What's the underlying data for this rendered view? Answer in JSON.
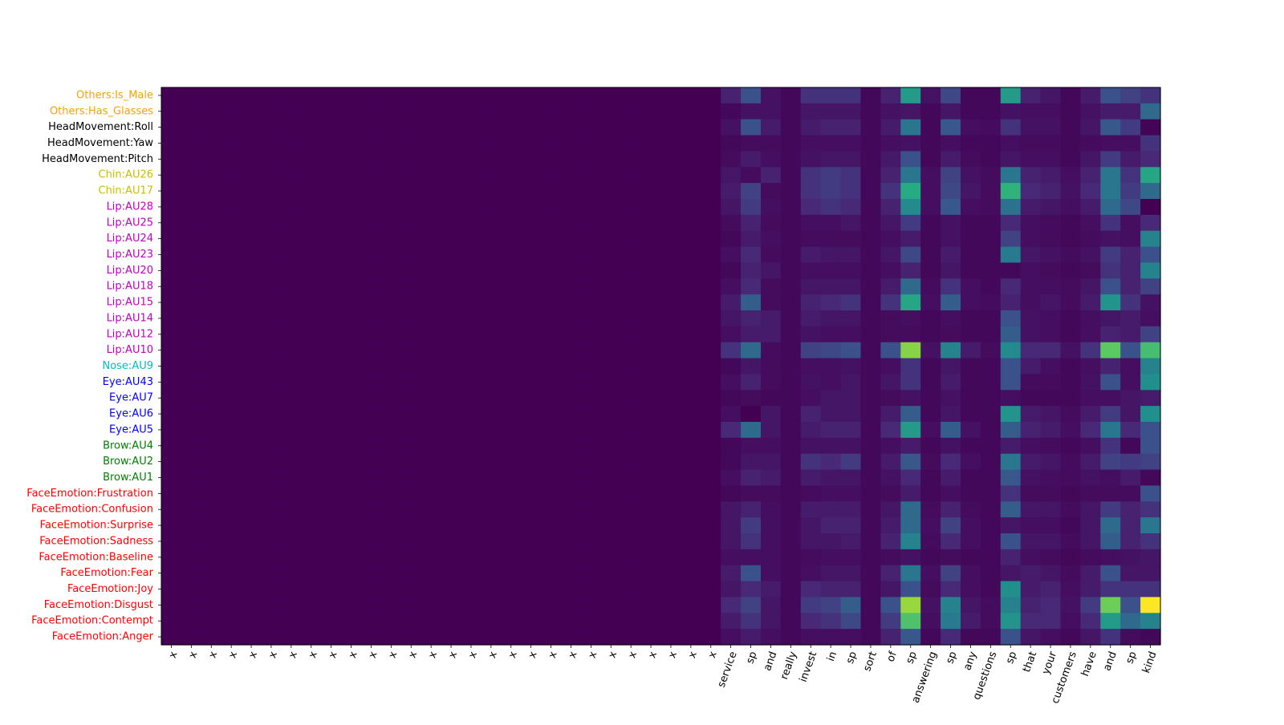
{
  "chart_data": {
    "type": "heatmap",
    "colormap": "viridis",
    "color_range": [
      0,
      1
    ],
    "x_tick_labels": [
      "x",
      "x",
      "x",
      "x",
      "x",
      "x",
      "x",
      "x",
      "x",
      "x",
      "x",
      "x",
      "x",
      "x",
      "x",
      "x",
      "x",
      "x",
      "x",
      "x",
      "x",
      "x",
      "x",
      "x",
      "x",
      "x",
      "x",
      "x",
      "service",
      "sp",
      "and",
      "really",
      "invest",
      "in",
      "sp",
      "sort",
      "of",
      "sp",
      "answering",
      "sp",
      "any",
      "questions",
      "sp",
      "that",
      "your",
      "customers",
      "have",
      "and",
      "sp",
      "kind"
    ],
    "y_tick_labels": [
      {
        "text": "Others:Is_Male",
        "color": "#f5a300"
      },
      {
        "text": "Others:Has_Glasses",
        "color": "#f5a300"
      },
      {
        "text": "HeadMovement:Roll",
        "color": "#000000"
      },
      {
        "text": "HeadMovement:Yaw",
        "color": "#000000"
      },
      {
        "text": "HeadMovement:Pitch",
        "color": "#000000"
      },
      {
        "text": "Chin:AU26",
        "color": "#c8be00"
      },
      {
        "text": "Chin:AU17",
        "color": "#c8be00"
      },
      {
        "text": "Lip:AU28",
        "color": "#c000c0"
      },
      {
        "text": "Lip:AU25",
        "color": "#c000c0"
      },
      {
        "text": "Lip:AU24",
        "color": "#c000c0"
      },
      {
        "text": "Lip:AU23",
        "color": "#c000c0"
      },
      {
        "text": "Lip:AU20",
        "color": "#c000c0"
      },
      {
        "text": "Lip:AU18",
        "color": "#c000c0"
      },
      {
        "text": "Lip:AU15",
        "color": "#c000c0"
      },
      {
        "text": "Lip:AU14",
        "color": "#c000c0"
      },
      {
        "text": "Lip:AU12",
        "color": "#c000c0"
      },
      {
        "text": "Lip:AU10",
        "color": "#c000c0"
      },
      {
        "text": "Nose:AU9",
        "color": "#00bfbf"
      },
      {
        "text": "Eye:AU43",
        "color": "#0000ff"
      },
      {
        "text": "Eye:AU7",
        "color": "#0000ff"
      },
      {
        "text": "Eye:AU6",
        "color": "#0000ff"
      },
      {
        "text": "Eye:AU5",
        "color": "#0000ff"
      },
      {
        "text": "Brow:AU4",
        "color": "#008000"
      },
      {
        "text": "Brow:AU2",
        "color": "#008000"
      },
      {
        "text": "Brow:AU1",
        "color": "#008000"
      },
      {
        "text": "FaceEmotion:Frustration",
        "color": "#ff0000"
      },
      {
        "text": "FaceEmotion:Confusion",
        "color": "#ff0000"
      },
      {
        "text": "FaceEmotion:Surprise",
        "color": "#ff0000"
      },
      {
        "text": "FaceEmotion:Sadness",
        "color": "#ff0000"
      },
      {
        "text": "FaceEmotion:Baseline",
        "color": "#ff0000"
      },
      {
        "text": "FaceEmotion:Fear",
        "color": "#ff0000"
      },
      {
        "text": "FaceEmotion:Joy",
        "color": "#ff0000"
      },
      {
        "text": "FaceEmotion:Disgust",
        "color": "#ff0000"
      },
      {
        "text": "FaceEmotion:Contempt",
        "color": "#ff0000"
      },
      {
        "text": "FaceEmotion:Anger",
        "color": "#ff0000"
      }
    ],
    "zero_columns": 28,
    "values": [
      [
        0.1,
        0.25,
        0.05,
        0.02,
        0.15,
        0.15,
        0.15,
        0.02,
        0.1,
        0.55,
        0.05,
        0.22,
        0.02,
        0.02,
        0.55,
        0.1,
        0.06,
        0.02,
        0.08,
        0.25,
        0.2,
        0.15
      ],
      [
        0.02,
        0.05,
        0.05,
        0.02,
        0.06,
        0.06,
        0.06,
        0.02,
        0.05,
        0.06,
        0.02,
        0.06,
        0.02,
        0.02,
        0.05,
        0.04,
        0.04,
        0.02,
        0.05,
        0.08,
        0.08,
        0.35
      ],
      [
        0.05,
        0.25,
        0.08,
        0.02,
        0.08,
        0.1,
        0.1,
        0.02,
        0.08,
        0.4,
        0.02,
        0.28,
        0.04,
        0.03,
        0.15,
        0.05,
        0.05,
        0.02,
        0.06,
        0.28,
        0.18,
        0.01
      ],
      [
        0.02,
        0.03,
        0.03,
        0.02,
        0.04,
        0.04,
        0.04,
        0.02,
        0.04,
        0.05,
        0.02,
        0.04,
        0.02,
        0.02,
        0.04,
        0.03,
        0.03,
        0.02,
        0.03,
        0.04,
        0.04,
        0.15
      ],
      [
        0.03,
        0.08,
        0.04,
        0.02,
        0.05,
        0.06,
        0.06,
        0.02,
        0.07,
        0.25,
        0.02,
        0.08,
        0.03,
        0.02,
        0.06,
        0.04,
        0.04,
        0.02,
        0.06,
        0.18,
        0.08,
        0.12
      ],
      [
        0.06,
        0.03,
        0.1,
        0.02,
        0.15,
        0.18,
        0.15,
        0.02,
        0.1,
        0.4,
        0.04,
        0.2,
        0.05,
        0.03,
        0.4,
        0.1,
        0.08,
        0.04,
        0.1,
        0.4,
        0.15,
        0.6
      ],
      [
        0.08,
        0.2,
        0.03,
        0.02,
        0.15,
        0.18,
        0.15,
        0.02,
        0.15,
        0.62,
        0.04,
        0.22,
        0.06,
        0.03,
        0.65,
        0.12,
        0.1,
        0.05,
        0.12,
        0.4,
        0.18,
        0.35
      ],
      [
        0.06,
        0.18,
        0.04,
        0.02,
        0.12,
        0.15,
        0.12,
        0.02,
        0.1,
        0.48,
        0.04,
        0.28,
        0.04,
        0.03,
        0.38,
        0.08,
        0.06,
        0.04,
        0.08,
        0.35,
        0.22,
        0.0
      ],
      [
        0.03,
        0.1,
        0.03,
        0.02,
        0.04,
        0.04,
        0.06,
        0.02,
        0.06,
        0.18,
        0.02,
        0.05,
        0.02,
        0.02,
        0.12,
        0.04,
        0.03,
        0.02,
        0.04,
        0.15,
        0.04,
        0.12
      ],
      [
        0.02,
        0.08,
        0.04,
        0.02,
        0.03,
        0.03,
        0.03,
        0.02,
        0.04,
        0.08,
        0.02,
        0.05,
        0.02,
        0.02,
        0.2,
        0.04,
        0.03,
        0.02,
        0.03,
        0.05,
        0.04,
        0.45
      ],
      [
        0.04,
        0.12,
        0.03,
        0.02,
        0.08,
        0.06,
        0.06,
        0.02,
        0.06,
        0.22,
        0.02,
        0.08,
        0.02,
        0.02,
        0.42,
        0.06,
        0.05,
        0.03,
        0.05,
        0.18,
        0.1,
        0.25
      ],
      [
        0.02,
        0.1,
        0.06,
        0.02,
        0.04,
        0.04,
        0.04,
        0.02,
        0.04,
        0.1,
        0.02,
        0.06,
        0.02,
        0.02,
        0.02,
        0.04,
        0.03,
        0.02,
        0.03,
        0.15,
        0.1,
        0.45
      ],
      [
        0.04,
        0.12,
        0.03,
        0.02,
        0.06,
        0.06,
        0.06,
        0.02,
        0.08,
        0.35,
        0.03,
        0.15,
        0.04,
        0.02,
        0.12,
        0.04,
        0.04,
        0.03,
        0.06,
        0.25,
        0.1,
        0.2
      ],
      [
        0.08,
        0.3,
        0.03,
        0.02,
        0.1,
        0.12,
        0.15,
        0.02,
        0.15,
        0.6,
        0.04,
        0.3,
        0.04,
        0.03,
        0.1,
        0.04,
        0.06,
        0.03,
        0.08,
        0.52,
        0.15,
        0.05
      ],
      [
        0.06,
        0.1,
        0.08,
        0.02,
        0.08,
        0.06,
        0.06,
        0.02,
        0.03,
        0.04,
        0.02,
        0.04,
        0.02,
        0.02,
        0.25,
        0.05,
        0.04,
        0.02,
        0.04,
        0.06,
        0.08,
        0.04
      ],
      [
        0.04,
        0.08,
        0.08,
        0.02,
        0.05,
        0.04,
        0.04,
        0.02,
        0.03,
        0.03,
        0.02,
        0.03,
        0.02,
        0.02,
        0.3,
        0.05,
        0.04,
        0.02,
        0.04,
        0.1,
        0.08,
        0.2
      ],
      [
        0.15,
        0.35,
        0.03,
        0.02,
        0.2,
        0.22,
        0.25,
        0.02,
        0.25,
        0.82,
        0.05,
        0.45,
        0.08,
        0.03,
        0.48,
        0.12,
        0.12,
        0.05,
        0.15,
        0.75,
        0.25,
        0.7
      ],
      [
        0.02,
        0.06,
        0.03,
        0.02,
        0.04,
        0.04,
        0.05,
        0.02,
        0.04,
        0.15,
        0.02,
        0.06,
        0.02,
        0.02,
        0.25,
        0.08,
        0.04,
        0.02,
        0.04,
        0.1,
        0.04,
        0.45
      ],
      [
        0.04,
        0.1,
        0.03,
        0.02,
        0.05,
        0.04,
        0.06,
        0.02,
        0.06,
        0.15,
        0.02,
        0.08,
        0.02,
        0.02,
        0.25,
        0.03,
        0.03,
        0.02,
        0.05,
        0.25,
        0.04,
        0.5
      ],
      [
        0.02,
        0.03,
        0.02,
        0.02,
        0.04,
        0.06,
        0.06,
        0.02,
        0.03,
        0.05,
        0.02,
        0.05,
        0.02,
        0.02,
        0.04,
        0.02,
        0.02,
        0.02,
        0.04,
        0.04,
        0.06,
        0.08
      ],
      [
        0.04,
        0.0,
        0.06,
        0.02,
        0.1,
        0.06,
        0.06,
        0.02,
        0.08,
        0.3,
        0.02,
        0.06,
        0.02,
        0.02,
        0.52,
        0.08,
        0.06,
        0.03,
        0.08,
        0.18,
        0.06,
        0.5
      ],
      [
        0.12,
        0.35,
        0.06,
        0.02,
        0.08,
        0.1,
        0.1,
        0.02,
        0.12,
        0.55,
        0.04,
        0.3,
        0.05,
        0.02,
        0.3,
        0.1,
        0.08,
        0.04,
        0.12,
        0.4,
        0.12,
        0.25
      ],
      [
        0.02,
        0.04,
        0.04,
        0.02,
        0.05,
        0.05,
        0.05,
        0.02,
        0.04,
        0.08,
        0.02,
        0.05,
        0.02,
        0.02,
        0.08,
        0.04,
        0.03,
        0.02,
        0.04,
        0.15,
        0.02,
        0.25
      ],
      [
        0.02,
        0.06,
        0.06,
        0.02,
        0.15,
        0.12,
        0.18,
        0.02,
        0.08,
        0.28,
        0.03,
        0.12,
        0.04,
        0.02,
        0.4,
        0.08,
        0.06,
        0.03,
        0.08,
        0.2,
        0.18,
        0.2
      ],
      [
        0.04,
        0.1,
        0.08,
        0.02,
        0.08,
        0.06,
        0.06,
        0.02,
        0.05,
        0.12,
        0.02,
        0.08,
        0.02,
        0.02,
        0.28,
        0.05,
        0.04,
        0.03,
        0.05,
        0.04,
        0.08,
        0.02
      ],
      [
        0.02,
        0.03,
        0.03,
        0.02,
        0.03,
        0.04,
        0.04,
        0.02,
        0.03,
        0.08,
        0.02,
        0.04,
        0.02,
        0.02,
        0.15,
        0.03,
        0.03,
        0.02,
        0.03,
        0.03,
        0.03,
        0.25
      ],
      [
        0.06,
        0.1,
        0.04,
        0.02,
        0.08,
        0.08,
        0.08,
        0.02,
        0.06,
        0.35,
        0.03,
        0.1,
        0.03,
        0.02,
        0.3,
        0.06,
        0.06,
        0.03,
        0.06,
        0.18,
        0.1,
        0.15
      ],
      [
        0.06,
        0.18,
        0.04,
        0.02,
        0.06,
        0.1,
        0.1,
        0.02,
        0.08,
        0.35,
        0.04,
        0.2,
        0.04,
        0.02,
        0.06,
        0.04,
        0.04,
        0.02,
        0.06,
        0.35,
        0.1,
        0.4
      ],
      [
        0.06,
        0.15,
        0.04,
        0.02,
        0.06,
        0.06,
        0.08,
        0.02,
        0.1,
        0.45,
        0.03,
        0.12,
        0.04,
        0.02,
        0.25,
        0.06,
        0.06,
        0.03,
        0.06,
        0.3,
        0.1,
        0.15
      ],
      [
        0.04,
        0.04,
        0.04,
        0.02,
        0.03,
        0.04,
        0.04,
        0.02,
        0.03,
        0.05,
        0.02,
        0.03,
        0.02,
        0.02,
        0.1,
        0.04,
        0.03,
        0.02,
        0.03,
        0.04,
        0.05,
        0.06
      ],
      [
        0.08,
        0.25,
        0.04,
        0.02,
        0.04,
        0.06,
        0.06,
        0.02,
        0.1,
        0.4,
        0.04,
        0.2,
        0.04,
        0.02,
        0.06,
        0.08,
        0.06,
        0.03,
        0.08,
        0.25,
        0.06,
        0.06
      ],
      [
        0.06,
        0.12,
        0.08,
        0.02,
        0.12,
        0.1,
        0.1,
        0.02,
        0.06,
        0.25,
        0.03,
        0.12,
        0.04,
        0.02,
        0.5,
        0.08,
        0.1,
        0.04,
        0.08,
        0.15,
        0.15,
        0.15
      ],
      [
        0.12,
        0.2,
        0.06,
        0.02,
        0.18,
        0.2,
        0.3,
        0.02,
        0.25,
        0.85,
        0.05,
        0.45,
        0.06,
        0.03,
        0.45,
        0.1,
        0.12,
        0.05,
        0.18,
        0.78,
        0.25,
        1.0
      ],
      [
        0.08,
        0.15,
        0.06,
        0.02,
        0.12,
        0.15,
        0.22,
        0.02,
        0.18,
        0.72,
        0.04,
        0.42,
        0.08,
        0.03,
        0.52,
        0.12,
        0.12,
        0.04,
        0.12,
        0.55,
        0.35,
        0.45
      ],
      [
        0.04,
        0.08,
        0.04,
        0.02,
        0.04,
        0.04,
        0.04,
        0.02,
        0.1,
        0.28,
        0.02,
        0.12,
        0.02,
        0.02,
        0.25,
        0.06,
        0.04,
        0.02,
        0.06,
        0.15,
        0.03,
        0.02
      ]
    ]
  }
}
